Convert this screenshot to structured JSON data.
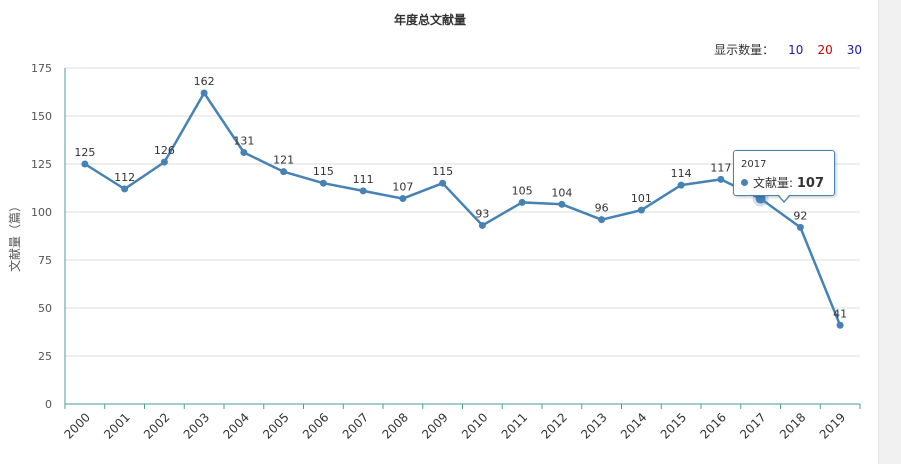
{
  "chart_data": {
    "type": "line",
    "title": "年度总文献量",
    "ylabel": "文献量（篇）",
    "xlabel": "",
    "ylim": [
      0,
      175
    ],
    "yticks": [
      0,
      25,
      50,
      75,
      100,
      125,
      150,
      175
    ],
    "grid": true,
    "categories": [
      "2000",
      "2001",
      "2002",
      "2003",
      "2004",
      "2005",
      "2006",
      "2007",
      "2008",
      "2009",
      "2010",
      "2011",
      "2012",
      "2013",
      "2014",
      "2015",
      "2016",
      "2017",
      "2018",
      "2019"
    ],
    "series": [
      {
        "name": "文献量",
        "color": "#4682b4",
        "values": [
          125,
          112,
          126,
          162,
          131,
          121,
          115,
          111,
          107,
          115,
          93,
          105,
          104,
          96,
          101,
          114,
          117,
          107,
          92,
          41
        ]
      }
    ]
  },
  "count_selector": {
    "label": "显示数量：",
    "options": [
      "10",
      "20",
      "30"
    ]
  },
  "tooltip": {
    "x_label": "2017",
    "series_label": "文献量: ",
    "value": "107"
  }
}
